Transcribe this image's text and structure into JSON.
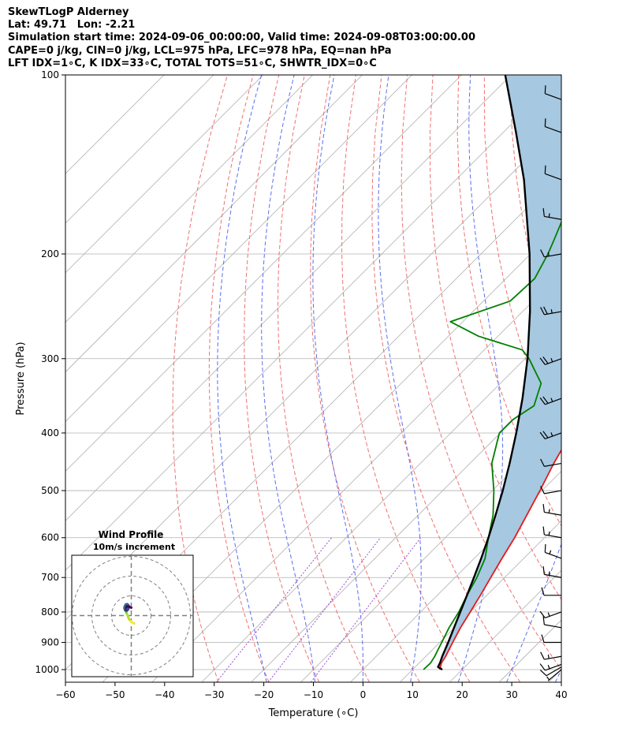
{
  "header": {
    "line1": "SkewTLogP Alderney",
    "line2": "Lat: 49.71   Lon: -2.21",
    "line3": "Simulation start time: 2024-09-06_00:00:00, Valid time: 2024-09-08T03:00:00.00",
    "line4": "CAPE=0 j/kg, CIN=0 j/kg, LCL=975 hPa, LFC=978 hPa, EQ=nan hPa",
    "line5": "LFT IDX=1∘C, K IDX=33∘C, TOTAL TOTS=51∘C, SHWTR_IDX=0∘C"
  },
  "colors": {
    "temperature": "#e31a1c",
    "dewpoint": "#008000",
    "parcel": "#000000",
    "cape_fill": "#a6c8e0",
    "dry_adiabat": "#f07070",
    "moist_adiabat": "#5a6ef0",
    "mixing_ratio": "#9b4fd1",
    "isotherm": "#b0b0b0",
    "grid": "#b0b0b0"
  },
  "chart_data": {
    "type": "skewt-logp",
    "xlabel": "Temperature (∘C)",
    "ylabel": "Pressure (hPa)",
    "xlim": [
      -60,
      40
    ],
    "ylim": [
      1050,
      100
    ],
    "x_ticks": [
      "−60",
      "−50",
      "−40",
      "−30",
      "−20",
      "−10",
      "0",
      "10",
      "20",
      "30",
      "40"
    ],
    "x_tick_values": [
      -60,
      -50,
      -40,
      -30,
      -20,
      -10,
      0,
      10,
      20,
      30,
      40
    ],
    "y_ticks": [
      "100",
      "200",
      "300",
      "400",
      "500",
      "600",
      "700",
      "800",
      "900",
      "1000"
    ],
    "y_tick_values": [
      100,
      200,
      300,
      400,
      500,
      600,
      700,
      800,
      900,
      1000
    ],
    "temperature": [
      [
        1000,
        15.5
      ],
      [
        975,
        14.5
      ],
      [
        950,
        14
      ],
      [
        925,
        13.3
      ],
      [
        900,
        12.6
      ],
      [
        850,
        11.2
      ],
      [
        800,
        10
      ],
      [
        750,
        8.7
      ],
      [
        700,
        7.2
      ],
      [
        650,
        5.6
      ],
      [
        600,
        4
      ],
      [
        550,
        1.9
      ],
      [
        500,
        -0.4
      ],
      [
        450,
        -3.1
      ],
      [
        400,
        -5.7
      ],
      [
        375,
        -8
      ],
      [
        350,
        -10.7
      ],
      [
        325,
        -13.5
      ],
      [
        300,
        -15.6
      ],
      [
        275,
        -16.7
      ],
      [
        250,
        -17.8
      ],
      [
        225,
        -19.8
      ],
      [
        200,
        -21.6
      ],
      [
        175,
        -23.2
      ],
      [
        150,
        -25.9
      ],
      [
        125,
        -25.8
      ],
      [
        110,
        -26.1
      ],
      [
        100,
        -26.3
      ]
    ],
    "dewpoint": [
      [
        1000,
        12.2
      ],
      [
        975,
        12.3
      ],
      [
        950,
        11.8
      ],
      [
        925,
        11.1
      ],
      [
        900,
        10.4
      ],
      [
        850,
        8.9
      ],
      [
        800,
        7.7
      ],
      [
        750,
        6
      ],
      [
        700,
        4.4
      ],
      [
        650,
        2.2
      ],
      [
        600,
        -1.3
      ],
      [
        550,
        -4.9
      ],
      [
        500,
        -9.7
      ],
      [
        450,
        -15.6
      ],
      [
        400,
        -20.2
      ],
      [
        380,
        -20.2
      ],
      [
        360,
        -18.7
      ],
      [
        330,
        -21.8
      ],
      [
        300,
        -29.2
      ],
      [
        290,
        -32.3
      ],
      [
        275,
        -43.9
      ],
      [
        260,
        -52.5
      ],
      [
        240,
        -44.6
      ],
      [
        220,
        -44.2
      ],
      [
        200,
        -46.5
      ],
      [
        190,
        -48
      ],
      [
        175,
        -50.5
      ],
      [
        150,
        -54
      ],
      [
        125,
        -60
      ],
      [
        100,
        -65
      ]
    ],
    "parcel": [
      [
        1000,
        16
      ],
      [
        990,
        14.6
      ],
      [
        975,
        14.2
      ],
      [
        950,
        13.3
      ],
      [
        900,
        11.7
      ],
      [
        850,
        9.9
      ],
      [
        800,
        8
      ],
      [
        750,
        6
      ],
      [
        700,
        3.8
      ],
      [
        650,
        1.4
      ],
      [
        600,
        -1.3
      ],
      [
        550,
        -4.4
      ],
      [
        500,
        -7.9
      ],
      [
        450,
        -12
      ],
      [
        400,
        -16.8
      ],
      [
        350,
        -22.5
      ],
      [
        300,
        -29.5
      ],
      [
        250,
        -38.5
      ],
      [
        200,
        -50.2
      ],
      [
        150,
        -66.3
      ],
      [
        125,
        -77.4
      ],
      [
        100,
        -91.2
      ]
    ],
    "wind_barbs": [
      [
        1000,
        230,
        5
      ],
      [
        990,
        240,
        10
      ],
      [
        980,
        250,
        15
      ],
      [
        950,
        260,
        15
      ],
      [
        900,
        270,
        10
      ],
      [
        850,
        280,
        10
      ],
      [
        800,
        250,
        15
      ],
      [
        750,
        270,
        10
      ],
      [
        700,
        280,
        15
      ],
      [
        650,
        290,
        15
      ],
      [
        600,
        280,
        15
      ],
      [
        550,
        280,
        15
      ],
      [
        500,
        260,
        10
      ],
      [
        450,
        260,
        10
      ],
      [
        400,
        250,
        25
      ],
      [
        350,
        250,
        25
      ],
      [
        300,
        250,
        25
      ],
      [
        250,
        260,
        25
      ],
      [
        200,
        260,
        15
      ],
      [
        175,
        280,
        15
      ],
      [
        150,
        290,
        10
      ],
      [
        125,
        290,
        10
      ],
      [
        110,
        290,
        10
      ]
    ],
    "hodograph": {
      "title": "Wind Profile",
      "subtitle": "10m/s increment",
      "ring_spacing_ms": 10,
      "rings": 3,
      "points": [
        [
          1.5,
          -4
        ],
        [
          0.5,
          -3.5
        ],
        [
          -0.3,
          -2.8
        ],
        [
          -1,
          -2
        ],
        [
          -1.5,
          -1
        ],
        [
          -1.8,
          0
        ],
        [
          -2.5,
          1.5
        ],
        [
          -3,
          2.8
        ],
        [
          -3.2,
          3.5
        ],
        [
          -3,
          4.2
        ],
        [
          -2.4,
          4.6
        ],
        [
          -1.8,
          4.4
        ],
        [
          -1.6,
          3.6
        ],
        [
          -2,
          2.8
        ],
        [
          -2.6,
          2.4
        ],
        [
          -3.2,
          2.8
        ],
        [
          -3.5,
          3.8
        ],
        [
          -3.3,
          4.8
        ],
        [
          -2.8,
          5.6
        ],
        [
          -2,
          5.8
        ],
        [
          -1.4,
          5.2
        ],
        [
          -1.3,
          4.2
        ],
        [
          -1.6,
          3.2
        ],
        [
          -2.1,
          2.6
        ],
        [
          -2.6,
          2.6
        ],
        [
          -2.9,
          3.2
        ],
        [
          -2.8,
          4
        ],
        [
          -2.3,
          4.6
        ],
        [
          -1.3,
          4.6
        ],
        [
          0,
          4
        ]
      ]
    }
  }
}
